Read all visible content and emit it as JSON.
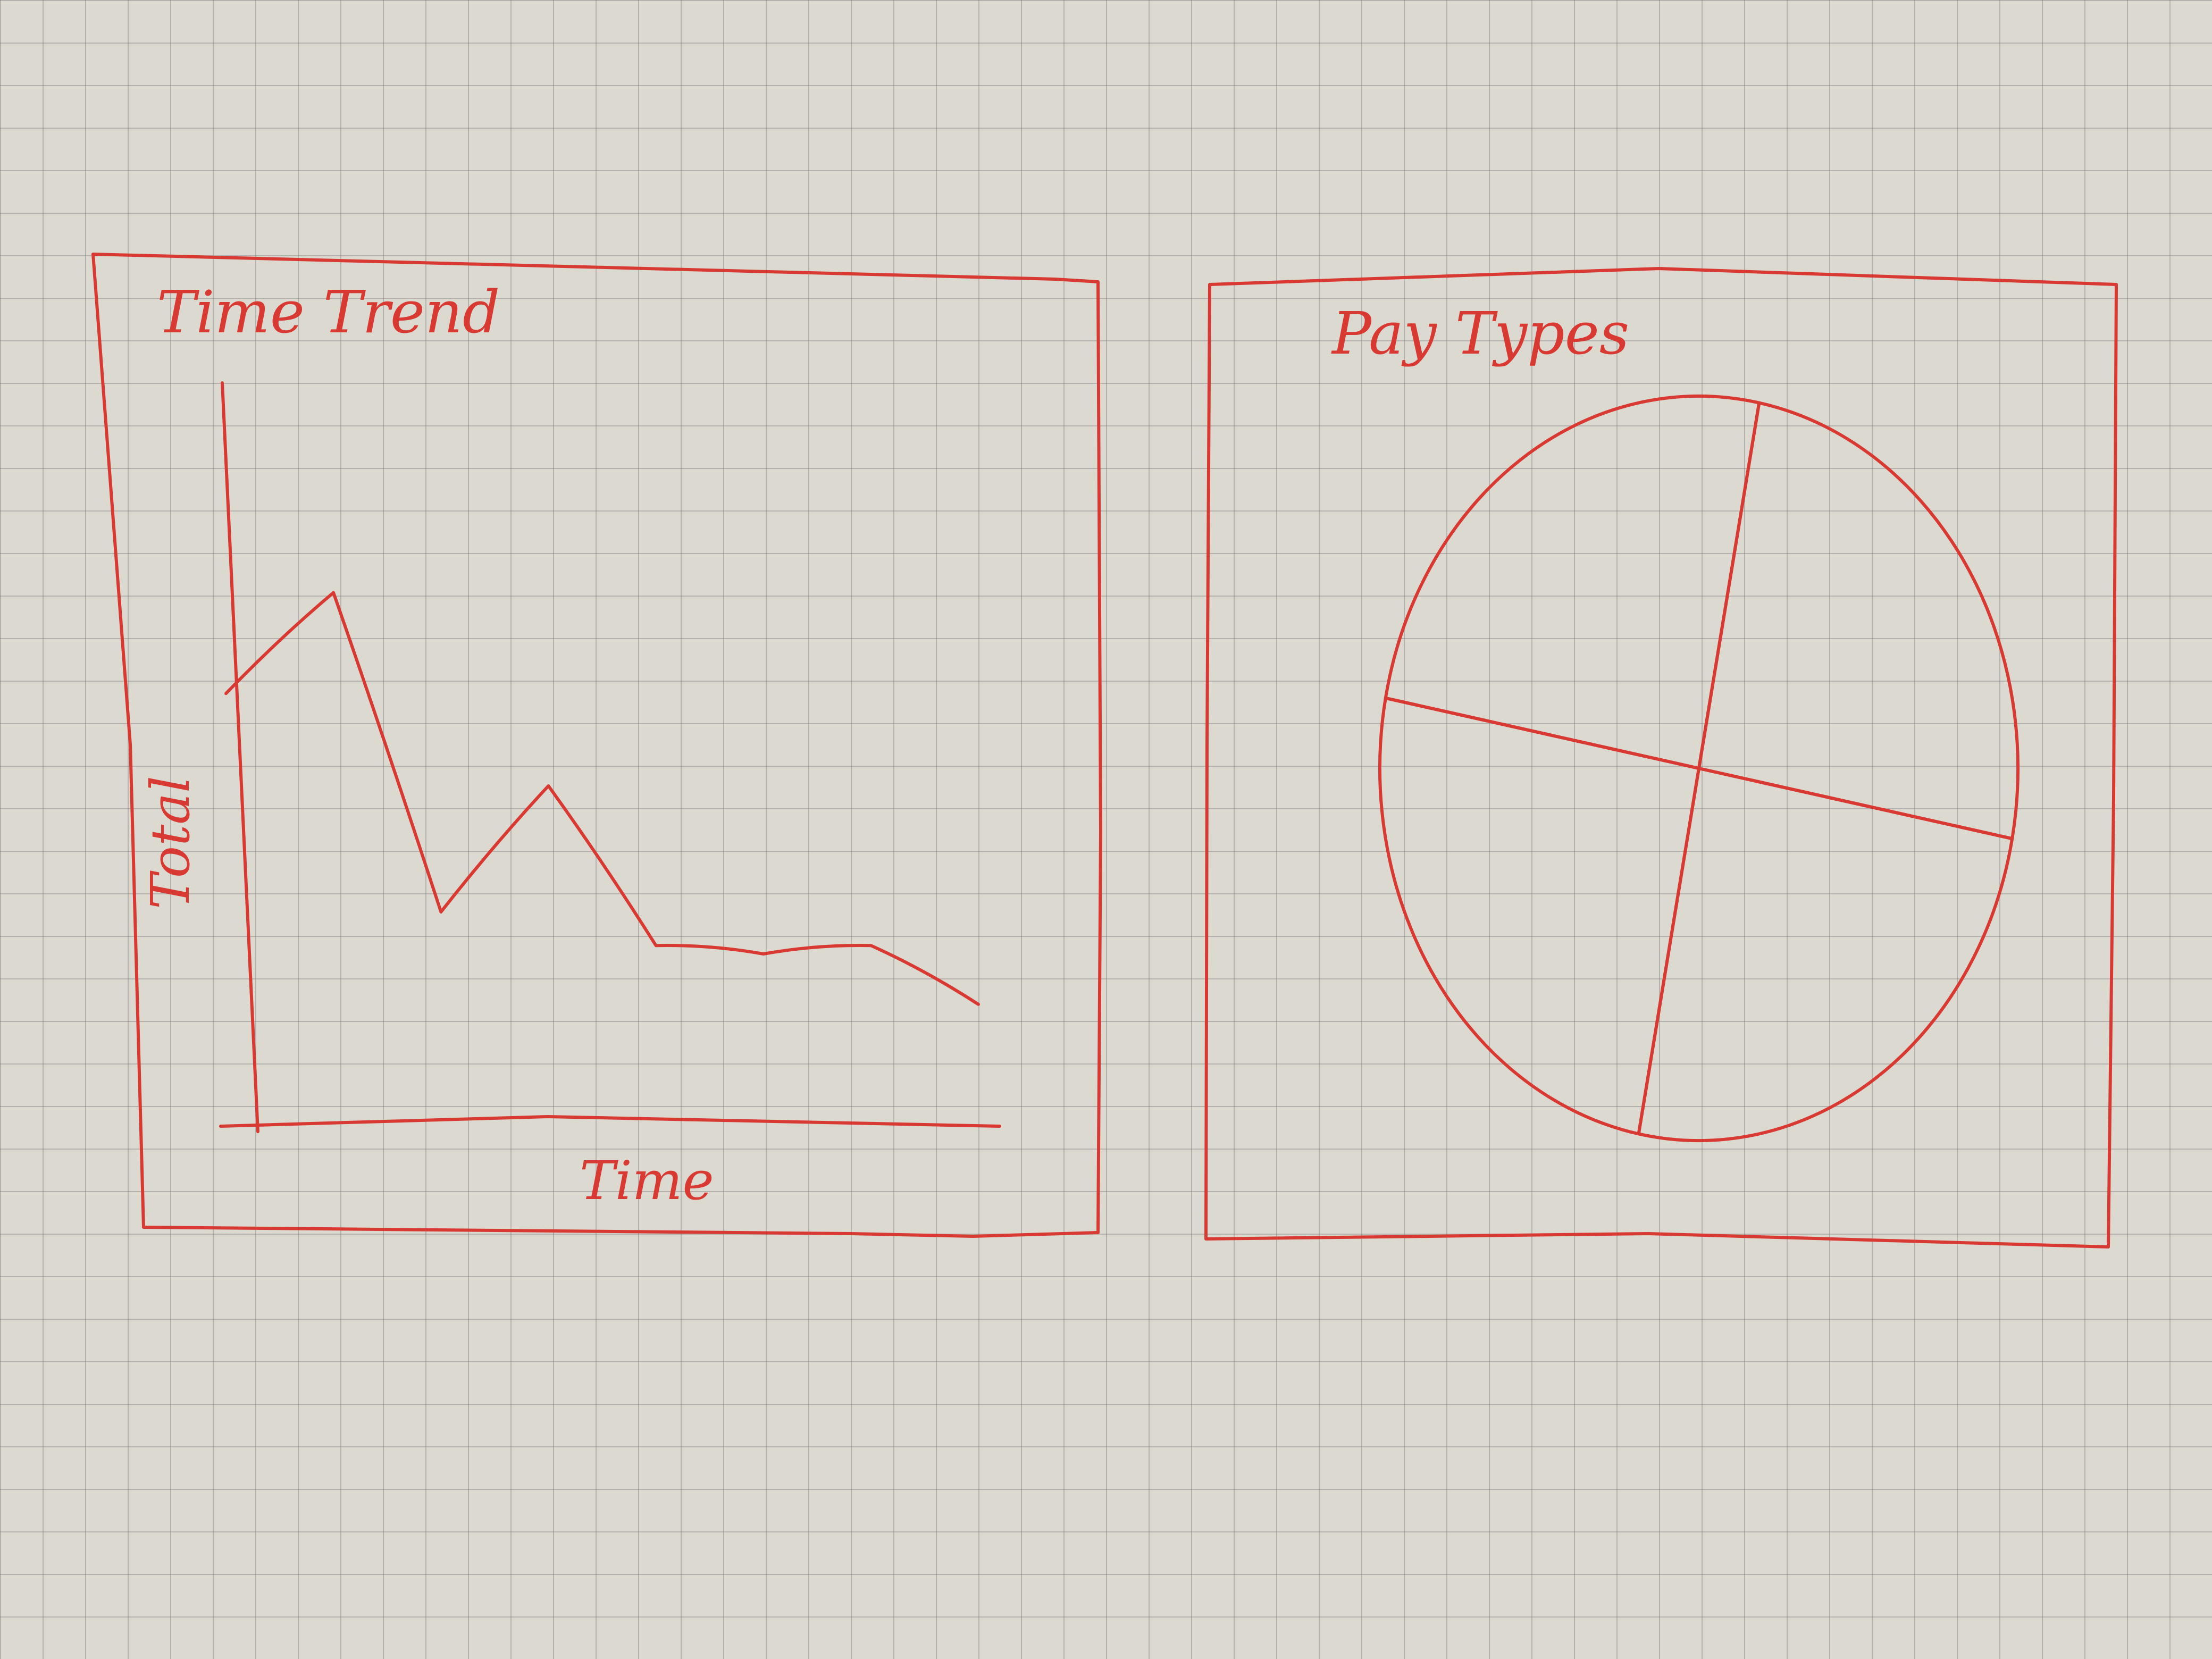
{
  "colors": {
    "ink": "#d83a33",
    "paper": "#dcd9d1"
  },
  "chart_data": [
    {
      "type": "line",
      "title": "Time Trend",
      "xlabel": "Time",
      "ylabel": "Total",
      "grid": false,
      "ylim": [
        0,
        100
      ],
      "x": [
        0,
        1,
        2,
        3,
        4,
        5,
        6,
        7
      ],
      "values": [
        51,
        63,
        25,
        40,
        21,
        20,
        21,
        14
      ]
    },
    {
      "type": "pie",
      "title": "Pay Types",
      "values": [
        25,
        25,
        25,
        25
      ]
    }
  ]
}
